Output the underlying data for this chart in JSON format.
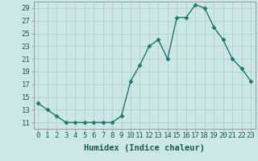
{
  "x": [
    0,
    1,
    2,
    3,
    4,
    5,
    6,
    7,
    8,
    9,
    10,
    11,
    12,
    13,
    14,
    15,
    16,
    17,
    18,
    19,
    20,
    21,
    22,
    23
  ],
  "y": [
    14,
    13,
    12,
    11,
    11,
    11,
    11,
    11,
    11,
    12,
    17.5,
    20,
    23,
    24,
    21,
    27.5,
    27.5,
    29.5,
    29,
    26,
    24,
    21,
    19.5,
    17.5
  ],
  "line_color": "#1a7a6e",
  "marker": "D",
  "marker_size": 2.5,
  "bg_color": "#cce8e4",
  "grid_color": "#c0d8d4",
  "grid_color_minor": "#d4e8e4",
  "xlabel": "Humidex (Indice chaleur)",
  "ylim": [
    10,
    30
  ],
  "xlim": [
    -0.5,
    23.5
  ],
  "yticks": [
    11,
    13,
    15,
    17,
    19,
    21,
    23,
    25,
    27,
    29
  ],
  "xtick_labels": [
    "0",
    "1",
    "2",
    "3",
    "4",
    "5",
    "6",
    "7",
    "8",
    "9",
    "10",
    "11",
    "12",
    "13",
    "14",
    "15",
    "16",
    "17",
    "18",
    "19",
    "20",
    "21",
    "22",
    "23"
  ],
  "xlabel_fontsize": 7.5,
  "tick_fontsize": 6.5
}
